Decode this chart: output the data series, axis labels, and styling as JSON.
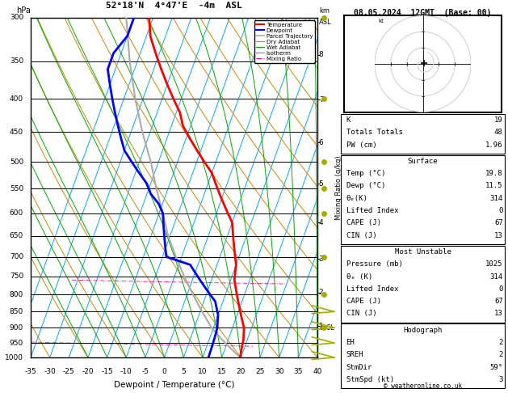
{
  "title_left": "52°18'N  4°47'E  -4m  ASL",
  "title_right": "08.05.2024  12GMT  (Base: 00)",
  "xlabel": "Dewpoint / Temperature (°C)",
  "ylabel_left": "hPa",
  "ylabel_right2": "Mixing Ratio (g/kg)",
  "p_levels": [
    300,
    350,
    400,
    450,
    500,
    550,
    600,
    650,
    700,
    750,
    800,
    850,
    900,
    950,
    1000
  ],
  "p_min": 300,
  "p_max": 1000,
  "t_min": -35,
  "t_max": 40,
  "temp_color": "#ff0000",
  "dewp_color": "#0000ff",
  "parcel_color": "#aaaaaa",
  "dry_adiabat_color": "#cc8800",
  "wet_adiabat_color": "#00aa00",
  "isotherm_color": "#00aaff",
  "mixing_ratio_color": "#ff00aa",
  "background_color": "#ffffff",
  "km_p_map": {
    "1": 895,
    "2": 795,
    "3": 705,
    "4": 620,
    "5": 540,
    "6": 467,
    "7": 401,
    "8": 342
  },
  "lcl_pressure": 900,
  "mixing_ratios": [
    1,
    2,
    3,
    4,
    5,
    8,
    10,
    15,
    20,
    25
  ],
  "skew_factor": 32,
  "legend_entries": [
    {
      "label": "Temperature",
      "color": "#ff0000",
      "lw": 1.5,
      "ls": "-"
    },
    {
      "label": "Dewpoint",
      "color": "#0000ff",
      "lw": 1.5,
      "ls": "-"
    },
    {
      "label": "Parcel Trajectory",
      "color": "#aaaaaa",
      "lw": 1.2,
      "ls": "-"
    },
    {
      "label": "Dry Adiabat",
      "color": "#cc8800",
      "lw": 0.8,
      "ls": "-"
    },
    {
      "label": "Wet Adiabat",
      "color": "#00aa00",
      "lw": 0.8,
      "ls": "-"
    },
    {
      "label": "Isotherm",
      "color": "#00aaff",
      "lw": 0.8,
      "ls": "-"
    },
    {
      "label": "Mixing Ratio",
      "color": "#ff00aa",
      "lw": 0.8,
      "ls": "-."
    }
  ],
  "info_K": 19,
  "info_TT": 48,
  "info_PW": 1.96,
  "sfc_temp": 19.8,
  "sfc_dewp": 11.5,
  "sfc_theta_e": 314,
  "sfc_li": 0,
  "sfc_cape": 67,
  "sfc_cin": 13,
  "mu_pressure": 1025,
  "mu_theta_e": 314,
  "mu_li": 0,
  "mu_cape": 67,
  "mu_cin": 13,
  "hodo_EH": 2,
  "hodo_SREH": 2,
  "hodo_StmDir": 59,
  "hodo_StmSpd": 3,
  "footer": "© weatheronline.co.uk",
  "temp_profile_p": [
    300,
    320,
    340,
    360,
    380,
    400,
    420,
    440,
    460,
    480,
    500,
    520,
    540,
    560,
    580,
    600,
    620,
    640,
    660,
    680,
    700,
    720,
    740,
    760,
    780,
    800,
    820,
    840,
    860,
    880,
    900,
    920,
    940,
    960,
    980,
    1000
  ],
  "temp_profile_t": [
    -36,
    -34,
    -31,
    -28,
    -25,
    -22,
    -19,
    -17,
    -14,
    -11,
    -8,
    -5,
    -3,
    -1,
    1,
    3,
    5,
    6,
    7,
    8,
    9,
    10,
    10.5,
    11,
    12,
    13,
    14,
    15,
    16,
    17,
    18,
    18.5,
    19,
    19.2,
    19.5,
    19.8
  ],
  "dewp_profile_p": [
    300,
    320,
    340,
    360,
    380,
    400,
    420,
    440,
    460,
    480,
    500,
    520,
    540,
    560,
    580,
    600,
    620,
    640,
    660,
    680,
    700,
    720,
    740,
    760,
    780,
    800,
    820,
    840,
    860,
    880,
    900,
    920,
    940,
    960,
    980,
    1000
  ],
  "dewp_profile_t": [
    -40,
    -40,
    -42,
    -42,
    -40,
    -38,
    -36,
    -34,
    -32,
    -30,
    -27,
    -24,
    -21,
    -19,
    -16,
    -14,
    -13,
    -12,
    -11,
    -10,
    -9,
    -2,
    0,
    2,
    4,
    6,
    8,
    9,
    10,
    10.5,
    11,
    11.2,
    11.3,
    11.4,
    11.45,
    11.5
  ],
  "parcel_profile_p": [
    1000,
    950,
    900,
    850,
    800,
    750,
    700,
    650,
    600,
    550,
    500,
    450,
    400,
    350,
    300
  ],
  "parcel_profile_t": [
    19.8,
    14.5,
    9.5,
    5.5,
    1.5,
    -2.5,
    -6.5,
    -10.5,
    -14,
    -18,
    -22,
    -27,
    -32,
    -37,
    -42
  ],
  "yellow_dot_p": [
    300,
    400,
    500,
    550,
    600,
    700,
    800,
    900
  ],
  "yellow_barb_p": [
    850,
    900,
    950,
    1000
  ]
}
